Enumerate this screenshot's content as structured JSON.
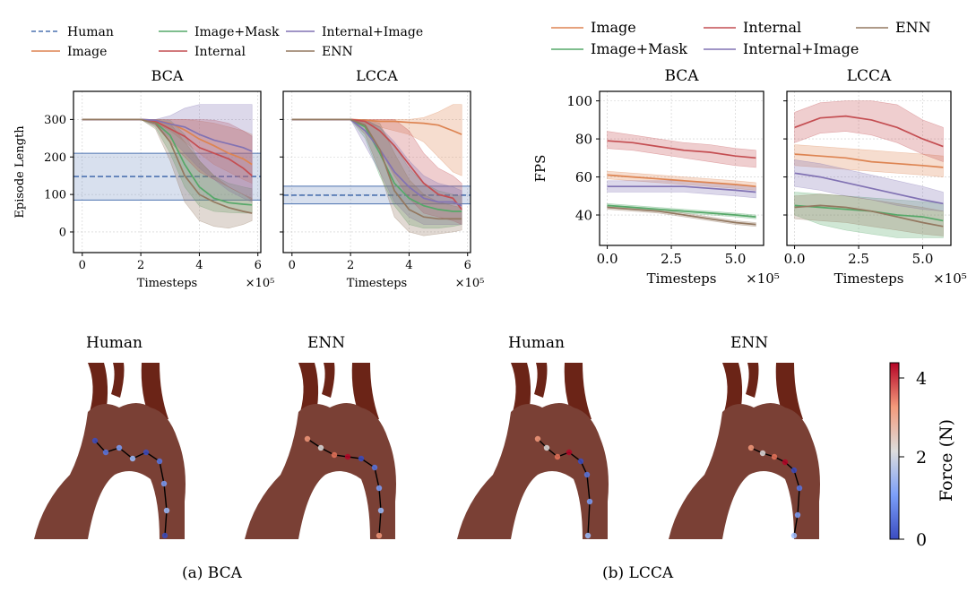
{
  "left_legend": [
    {
      "name": "Human",
      "color": "#4c72b0",
      "dash": true
    },
    {
      "name": "Image",
      "color": "#dd8452"
    },
    {
      "name": "Image+Mask",
      "color": "#55a868"
    },
    {
      "name": "Internal",
      "color": "#c44e52"
    },
    {
      "name": "Internal+Image",
      "color": "#8172b3"
    },
    {
      "name": "ENN",
      "color": "#937860"
    }
  ],
  "right_legend": [
    {
      "name": "Image",
      "color": "#dd8452"
    },
    {
      "name": "Image+Mask",
      "color": "#55a868"
    },
    {
      "name": "Internal",
      "color": "#c44e52"
    },
    {
      "name": "Internal+Image",
      "color": "#8172b3"
    },
    {
      "name": "ENN",
      "color": "#937860"
    }
  ],
  "chart_data": [
    {
      "type": "line",
      "title": "BCA",
      "xlabel": "Timesteps",
      "x_exponent": "×10⁵",
      "ylabel": "Episode Length",
      "xlim": [
        -0.3,
        6.1
      ],
      "ylim": [
        -55,
        375
      ],
      "xticks": [
        0,
        2,
        4,
        6
      ],
      "yticks": [
        0,
        100,
        200,
        300
      ],
      "band": {
        "name": "Human",
        "mean": 148,
        "lo": 85,
        "hi": 210
      },
      "series": [
        {
          "name": "Image",
          "x": [
            0,
            1,
            2,
            2.5,
            3,
            3.5,
            4,
            4.5,
            5,
            5.5,
            5.8
          ],
          "y": [
            300,
            300,
            300,
            298,
            290,
            272,
            248,
            230,
            210,
            195,
            180
          ],
          "lo": [
            300,
            300,
            300,
            290,
            270,
            240,
            210,
            180,
            160,
            140,
            130
          ],
          "hi": [
            300,
            300,
            300,
            300,
            300,
            300,
            296,
            290,
            280,
            270,
            260
          ]
        },
        {
          "name": "Image+Mask",
          "x": [
            0,
            1,
            2,
            2.5,
            3,
            3.5,
            4,
            4.5,
            5,
            5.5,
            5.8
          ],
          "y": [
            300,
            300,
            300,
            292,
            258,
            180,
            120,
            90,
            78,
            74,
            72
          ],
          "lo": [
            300,
            300,
            300,
            280,
            210,
            120,
            70,
            55,
            52,
            50,
            50
          ],
          "hi": [
            300,
            300,
            300,
            300,
            298,
            260,
            190,
            150,
            130,
            120,
            115
          ]
        },
        {
          "name": "Internal",
          "x": [
            0,
            1,
            2,
            2.5,
            3,
            3.5,
            4,
            4.5,
            5,
            5.5,
            5.8
          ],
          "y": [
            300,
            300,
            300,
            295,
            275,
            255,
            225,
            210,
            195,
            170,
            150
          ],
          "lo": [
            300,
            300,
            300,
            285,
            240,
            200,
            160,
            140,
            120,
            100,
            85
          ],
          "hi": [
            300,
            300,
            300,
            300,
            300,
            300,
            300,
            298,
            290,
            270,
            255
          ]
        },
        {
          "name": "Internal+Image",
          "x": [
            0,
            1,
            2,
            2.5,
            3,
            3.5,
            4,
            4.5,
            5,
            5.5,
            5.8
          ],
          "y": [
            300,
            300,
            300,
            298,
            288,
            280,
            260,
            245,
            235,
            225,
            215
          ],
          "lo": [
            300,
            300,
            300,
            285,
            250,
            210,
            170,
            140,
            110,
            90,
            80
          ],
          "hi": [
            300,
            300,
            300,
            300,
            310,
            330,
            340,
            340,
            340,
            340,
            340
          ]
        },
        {
          "name": "ENN",
          "x": [
            0,
            1,
            2,
            2.5,
            3,
            3.5,
            4,
            4.5,
            5,
            5.5,
            5.8
          ],
          "y": [
            300,
            300,
            300,
            290,
            240,
            150,
            100,
            80,
            65,
            55,
            50
          ],
          "lo": [
            300,
            300,
            300,
            275,
            190,
            80,
            30,
            15,
            10,
            20,
            30
          ],
          "hi": [
            300,
            300,
            300,
            300,
            290,
            240,
            190,
            150,
            120,
            100,
            90
          ]
        }
      ]
    },
    {
      "type": "line",
      "title": "LCCA",
      "xlabel": "Timesteps",
      "x_exponent": "×10⁵",
      "ylabel": "",
      "xlim": [
        -0.3,
        6.1
      ],
      "ylim": [
        -55,
        375
      ],
      "xticks": [
        0,
        2,
        4,
        6
      ],
      "yticks": [
        0,
        100,
        200,
        300
      ],
      "band": {
        "name": "Human",
        "mean": 98,
        "lo": 75,
        "hi": 122
      },
      "series": [
        {
          "name": "Image",
          "x": [
            0,
            1,
            2,
            2.5,
            3,
            3.5,
            4,
            4.5,
            5,
            5.5,
            5.8
          ],
          "y": [
            300,
            300,
            300,
            298,
            295,
            295,
            292,
            290,
            285,
            270,
            260
          ],
          "lo": [
            300,
            300,
            300,
            290,
            280,
            270,
            260,
            240,
            200,
            160,
            150
          ],
          "hi": [
            300,
            300,
            300,
            300,
            300,
            300,
            300,
            305,
            320,
            340,
            340
          ]
        },
        {
          "name": "Image+Mask",
          "x": [
            0,
            1,
            2,
            2.5,
            3,
            3.5,
            4,
            4.5,
            5,
            5.5,
            5.8
          ],
          "y": [
            300,
            300,
            300,
            280,
            210,
            130,
            90,
            70,
            60,
            55,
            55
          ],
          "lo": [
            300,
            300,
            300,
            250,
            150,
            70,
            20,
            10,
            10,
            15,
            20
          ],
          "hi": [
            300,
            300,
            300,
            300,
            280,
            230,
            170,
            130,
            110,
            100,
            95
          ]
        },
        {
          "name": "Internal",
          "x": [
            0,
            1,
            2,
            2.5,
            3,
            3.5,
            4,
            4.5,
            5,
            5.5,
            5.8
          ],
          "y": [
            300,
            300,
            300,
            295,
            270,
            230,
            180,
            130,
            100,
            90,
            60
          ],
          "lo": [
            300,
            300,
            300,
            280,
            220,
            150,
            90,
            50,
            40,
            30,
            20
          ],
          "hi": [
            300,
            300,
            300,
            300,
            300,
            300,
            270,
            210,
            170,
            150,
            130
          ]
        },
        {
          "name": "Internal+Image",
          "x": [
            0,
            1,
            2,
            2.5,
            3,
            3.5,
            4,
            4.5,
            5,
            5.5,
            5.8
          ],
          "y": [
            300,
            300,
            300,
            270,
            220,
            160,
            120,
            90,
            80,
            80,
            70
          ],
          "lo": [
            300,
            300,
            300,
            230,
            160,
            80,
            40,
            20,
            20,
            20,
            20
          ],
          "hi": [
            300,
            300,
            300,
            300,
            280,
            240,
            190,
            150,
            130,
            120,
            110
          ]
        },
        {
          "name": "ENN",
          "x": [
            0,
            1,
            2,
            2.5,
            3,
            3.5,
            4,
            4.5,
            5,
            5.5,
            5.8
          ],
          "y": [
            300,
            300,
            300,
            285,
            220,
            110,
            60,
            40,
            35,
            35,
            35
          ],
          "lo": [
            300,
            300,
            300,
            260,
            160,
            40,
            0,
            -10,
            -5,
            0,
            5
          ],
          "hi": [
            300,
            300,
            300,
            300,
            290,
            210,
            140,
            100,
            80,
            70,
            65
          ]
        }
      ]
    },
    {
      "type": "line",
      "title": "BCA",
      "xlabel": "Timesteps",
      "x_exponent": "×10⁵",
      "ylabel": "FPS",
      "xlim": [
        -0.3,
        6.1
      ],
      "ylim": [
        24,
        105
      ],
      "xticks": [
        0,
        2.5,
        5
      ],
      "xtick_labels": [
        "0.0",
        "2.5",
        "5.0"
      ],
      "yticks": [
        40,
        60,
        80,
        100
      ],
      "series": [
        {
          "name": "Image",
          "x": [
            0,
            1,
            2,
            3,
            4,
            5,
            5.8
          ],
          "y": [
            61,
            60,
            59,
            58,
            57,
            56,
            55
          ],
          "lo": [
            59,
            58,
            57,
            56,
            55,
            54,
            53
          ],
          "hi": [
            63,
            62,
            61,
            60,
            59,
            58,
            57
          ]
        },
        {
          "name": "Image+Mask",
          "x": [
            0,
            1,
            2,
            3,
            4,
            5,
            5.8
          ],
          "y": [
            45,
            44,
            43,
            42,
            41,
            40,
            39
          ],
          "lo": [
            44,
            43,
            42,
            41,
            40,
            39,
            38
          ],
          "hi": [
            46,
            45,
            44,
            43,
            42,
            41,
            40
          ]
        },
        {
          "name": "Internal",
          "x": [
            0,
            1,
            2,
            3,
            4,
            5,
            5.8
          ],
          "y": [
            79,
            78,
            76,
            74,
            73,
            71,
            70
          ],
          "lo": [
            75,
            74,
            72,
            70,
            68,
            66,
            65
          ],
          "hi": [
            84,
            82,
            80,
            78,
            77,
            75,
            74
          ]
        },
        {
          "name": "Internal+Image",
          "x": [
            0,
            1,
            2,
            3,
            4,
            5,
            5.8
          ],
          "y": [
            55,
            55,
            55,
            55,
            54,
            53,
            52
          ],
          "lo": [
            52,
            52,
            52,
            52,
            51,
            50,
            49
          ],
          "hi": [
            58,
            58,
            58,
            58,
            57,
            56,
            55
          ]
        },
        {
          "name": "ENN",
          "x": [
            0,
            1,
            2,
            3,
            4,
            5,
            5.8
          ],
          "y": [
            44,
            43,
            42,
            40,
            38,
            36,
            35
          ],
          "lo": [
            43,
            42,
            41,
            39,
            37,
            35,
            34
          ],
          "hi": [
            45,
            44,
            43,
            41,
            39,
            37,
            36
          ]
        }
      ]
    },
    {
      "type": "line",
      "title": "LCCA",
      "xlabel": "Timesteps",
      "x_exponent": "×10⁵",
      "ylabel": "",
      "xlim": [
        -0.3,
        6.1
      ],
      "ylim": [
        24,
        105
      ],
      "xticks": [
        0,
        2.5,
        5
      ],
      "xtick_labels": [
        "0.0",
        "2.5",
        "5.0"
      ],
      "yticks": [
        40,
        60,
        80,
        100
      ],
      "series": [
        {
          "name": "Image",
          "x": [
            0,
            1,
            2,
            3,
            4,
            5,
            5.8
          ],
          "y": [
            72,
            71,
            70,
            68,
            67,
            66,
            65
          ],
          "lo": [
            66,
            65,
            64,
            63,
            62,
            61,
            60
          ],
          "hi": [
            77,
            76,
            75,
            74,
            73,
            72,
            71
          ]
        },
        {
          "name": "Image+Mask",
          "x": [
            0,
            1,
            2,
            3,
            4,
            5,
            5.8
          ],
          "y": [
            45,
            44,
            43,
            42,
            40,
            39,
            37
          ],
          "lo": [
            40,
            35,
            32,
            30,
            28,
            28,
            28
          ],
          "hi": [
            52,
            51,
            50,
            49,
            48,
            47,
            46
          ]
        },
        {
          "name": "Internal",
          "x": [
            0,
            1,
            2,
            3,
            4,
            5,
            5.8
          ],
          "y": [
            86,
            91,
            92,
            90,
            86,
            80,
            76
          ],
          "lo": [
            78,
            83,
            84,
            82,
            78,
            72,
            68
          ],
          "hi": [
            94,
            99,
            100,
            100,
            98,
            90,
            86
          ]
        },
        {
          "name": "Internal+Image",
          "x": [
            0,
            1,
            2,
            3,
            4,
            5,
            5.8
          ],
          "y": [
            62,
            60,
            57,
            54,
            51,
            48,
            46
          ],
          "lo": [
            55,
            53,
            50,
            48,
            45,
            43,
            42
          ],
          "hi": [
            69,
            67,
            64,
            61,
            58,
            55,
            52
          ]
        },
        {
          "name": "ENN",
          "x": [
            0,
            1,
            2,
            3,
            4,
            5,
            5.8
          ],
          "y": [
            44,
            45,
            44,
            42,
            39,
            36,
            34
          ],
          "lo": [
            38,
            37,
            36,
            34,
            32,
            30,
            29
          ],
          "hi": [
            50,
            51,
            50,
            48,
            46,
            44,
            42
          ]
        }
      ]
    }
  ],
  "bottom": {
    "labels": [
      "Human",
      "ENN",
      "Human",
      "ENN"
    ],
    "caption_a": "(a) BCA",
    "caption_b": "(b) LCCA",
    "colorbar": {
      "label": "Force (N)",
      "ticks": [
        "0",
        "2",
        "4"
      ],
      "min": 0,
      "max": 4.3
    }
  }
}
